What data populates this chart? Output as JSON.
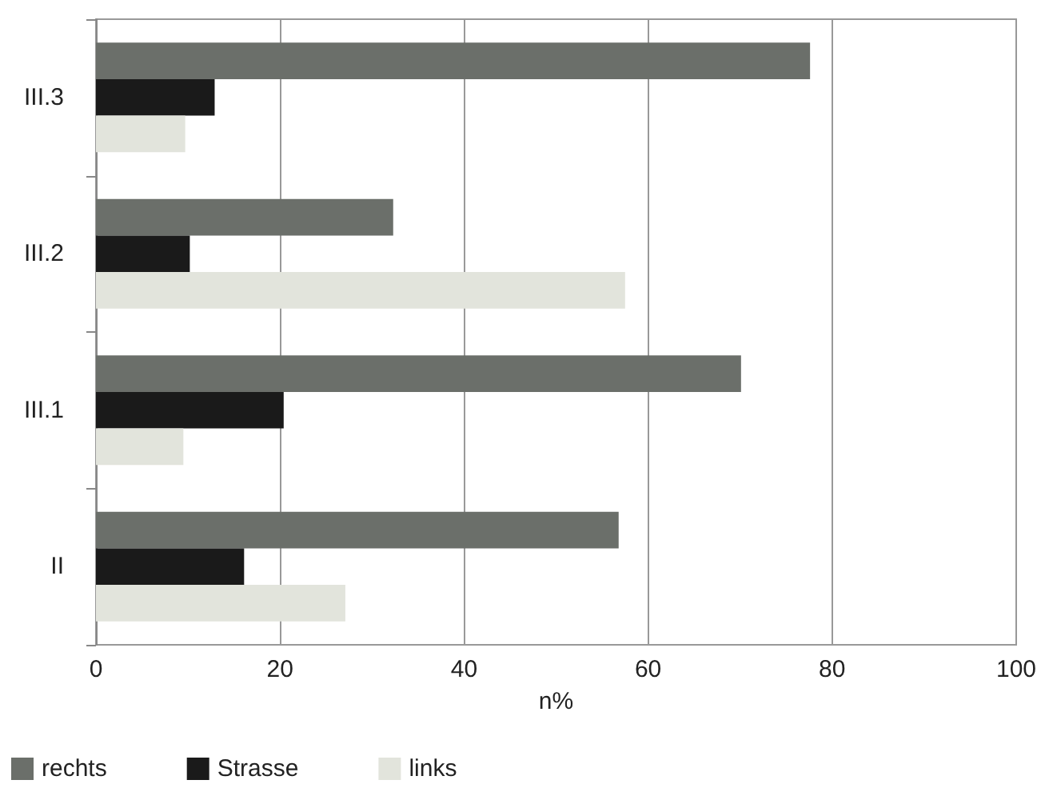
{
  "chart_data": {
    "type": "bar",
    "orientation": "horizontal",
    "xlabel": "n%",
    "categories": [
      "III.3",
      "III.2",
      "III.1",
      "II"
    ],
    "series": [
      {
        "name": "rechts",
        "color": "#6b6f6a",
        "values": [
          77.6,
          32.3,
          70.1,
          56.8
        ]
      },
      {
        "name": "Strasse",
        "color": "#1a1a1a",
        "values": [
          12.9,
          10.2,
          20.4,
          16.1
        ]
      },
      {
        "name": "links",
        "color": "#e2e4dc",
        "values": [
          9.7,
          57.5,
          9.5,
          27.1
        ]
      }
    ],
    "xlim": [
      0,
      100
    ],
    "xticks": [
      0,
      20,
      40,
      60,
      80,
      100
    ],
    "grid": "x",
    "legend": "bottom left"
  }
}
